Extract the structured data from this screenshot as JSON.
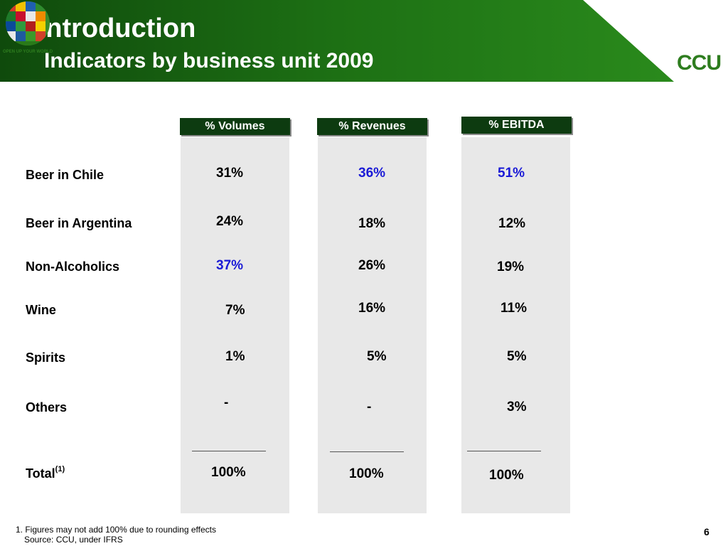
{
  "header": {
    "title_line1": "I.  Introduction",
    "title_line2": "Indicators by business unit 2009",
    "band_color": "#1a6a12",
    "logo": {
      "tagline": "OPEN UP YOUR WORLD",
      "word": "CCU",
      "icon": "ccu-globe-logo"
    }
  },
  "columns": [
    {
      "label": "% Volumes"
    },
    {
      "label": "% Revenues"
    },
    {
      "label": "% EBITDA"
    }
  ],
  "rows": [
    {
      "label": "Beer in Chile",
      "values": [
        "31%",
        "36%",
        "51%"
      ]
    },
    {
      "label": "Beer in Argentina",
      "values": [
        "24%",
        "18%",
        "12%"
      ]
    },
    {
      "label": "Non-Alcoholics",
      "values": [
        "37%",
        "26%",
        "19%"
      ]
    },
    {
      "label": "Wine",
      "values": [
        "7%",
        "16%",
        "11%"
      ]
    },
    {
      "label": "Spirits",
      "values": [
        "1%",
        "5%",
        "5%"
      ]
    },
    {
      "label": "Others",
      "values": [
        "-",
        "-",
        "3%"
      ]
    }
  ],
  "total": {
    "label": "Total",
    "superscript": "(1)",
    "values": [
      "100%",
      "100%",
      "100%"
    ]
  },
  "highlight_color": "#1a1ad6",
  "footnotes": {
    "note1": "1. Figures may not add 100% due to rounding effects",
    "source": "Source: CCU, under IFRS"
  },
  "page_number": "6"
}
